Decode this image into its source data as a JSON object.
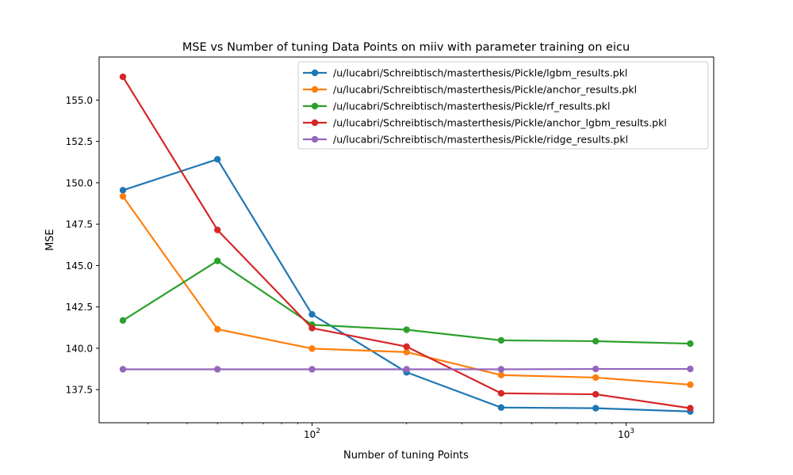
{
  "chart_data": {
    "type": "line",
    "title": "MSE vs Number of tuning Data Points on miiv with parameter training on eicu",
    "xlabel": "Number of tuning Points",
    "ylabel": "MSE",
    "xscale": "log",
    "xlim": [
      21,
      1900
    ],
    "ylim": [
      135.5,
      157.6
    ],
    "x": [
      25,
      50,
      100,
      200,
      400,
      800,
      1600
    ],
    "xticks": [
      {
        "value": 100,
        "base": "10",
        "exp": "2"
      },
      {
        "value": 1000,
        "base": "10",
        "exp": "3"
      }
    ],
    "yticks": [
      "137.5",
      "140.0",
      "142.5",
      "145.0",
      "147.5",
      "150.0",
      "152.5",
      "155.0"
    ],
    "grid": false,
    "legend_position": "top-right",
    "series": [
      {
        "name": "/u/lucabri/Schreibtisch/masterthesis/Pickle/lgbm_results.pkl",
        "color": "#1f77b4",
        "values": [
          149.55,
          151.42,
          142.05,
          138.55,
          136.42,
          136.38,
          136.18
        ]
      },
      {
        "name": "/u/lucabri/Schreibtisch/masterthesis/Pickle/anchor_results.pkl",
        "color": "#ff7f0e",
        "values": [
          149.18,
          141.15,
          139.98,
          139.77,
          138.38,
          138.23,
          137.8
        ]
      },
      {
        "name": "/u/lucabri/Schreibtisch/masterthesis/Pickle/rf_results.pkl",
        "color": "#2ca02c",
        "values": [
          141.68,
          145.28,
          141.42,
          141.12,
          140.48,
          140.43,
          140.28
        ]
      },
      {
        "name": "/u/lucabri/Schreibtisch/masterthesis/Pickle/anchor_lgbm_results.pkl",
        "color": "#d62728",
        "values": [
          156.4,
          147.15,
          141.22,
          140.1,
          137.28,
          137.22,
          136.38
        ]
      },
      {
        "name": "/u/lucabri/Schreibtisch/masterthesis/Pickle/ridge_results.pkl",
        "color": "#9467bd",
        "values": [
          138.73,
          138.73,
          138.73,
          138.73,
          138.73,
          138.75,
          138.75
        ]
      }
    ]
  }
}
